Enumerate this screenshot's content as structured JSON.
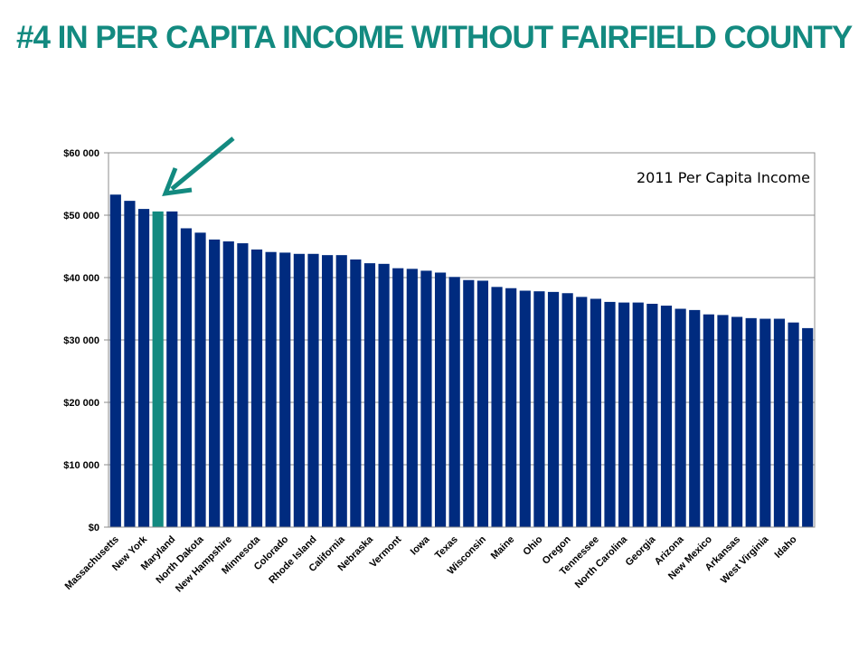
{
  "slide": {
    "title": "#4 IN PER CAPITA INCOME WITHOUT FAIRFIELD COUNTY"
  },
  "colors": {
    "bar": "#002b7f",
    "highlight": "#138a80",
    "title": "#138a80",
    "grid": "#8c8c8c"
  },
  "chart_data": {
    "type": "bar",
    "title": "",
    "annotation": "2011 Per Capita Income",
    "xlabel": "",
    "ylabel": "",
    "ylim": [
      0,
      60000
    ],
    "y_ticks": [
      0,
      10000,
      20000,
      30000,
      40000,
      50000,
      60000
    ],
    "y_tick_labels": [
      "$0",
      "$10 000",
      "$20 000",
      "$30 000",
      "$40 000",
      "$50 000",
      "$60 000"
    ],
    "grid": true,
    "highlight_index": 3,
    "arrow_target": "highlighted bar",
    "category_labels_shown": [
      "Massachusetts",
      "",
      "New York",
      "",
      "Maryland",
      "",
      "North Dakota",
      "",
      "New Hampshire",
      "",
      "Minnesota",
      "",
      "Colorado",
      "",
      "Rhode Island",
      "",
      "California",
      "",
      "Nebraska",
      "",
      "Vermont",
      "",
      "Iowa",
      "",
      "Texas",
      "",
      "Wisconsin",
      "",
      "Maine",
      "",
      "Ohio",
      "",
      "Oregon",
      "",
      "Tennessee",
      "",
      "North Carolina",
      "",
      "Georgia",
      "",
      "Arizona",
      "",
      "New Mexico",
      "",
      "Arkansas",
      "",
      "West Virginia",
      "",
      "Idaho",
      ""
    ],
    "values": [
      53300,
      52300,
      51000,
      50600,
      50600,
      47900,
      47200,
      46100,
      45800,
      45500,
      44500,
      44100,
      44000,
      43800,
      43800,
      43600,
      43600,
      42900,
      42300,
      42200,
      41500,
      41400,
      41100,
      40800,
      40100,
      39600,
      39500,
      38500,
      38300,
      37900,
      37800,
      37700,
      37500,
      36900,
      36600,
      36100,
      36000,
      36000,
      35800,
      35500,
      35000,
      34800,
      34100,
      34000,
      33700,
      33500,
      33400,
      33400,
      32800,
      31900
    ]
  }
}
